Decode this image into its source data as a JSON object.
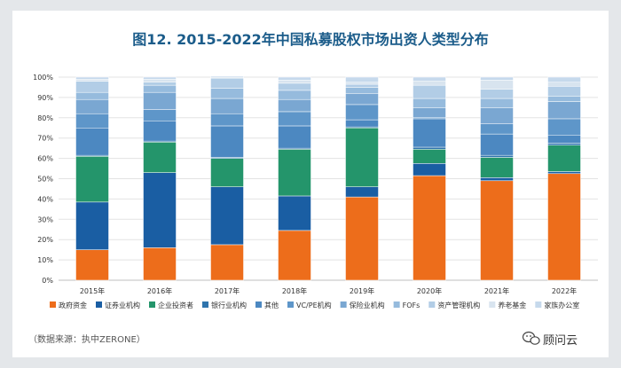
{
  "chart_data": {
    "type": "bar",
    "stacked": true,
    "title": "图12. 2015-2022年中国私募股权市场出资人类型分布",
    "categories": [
      "2015年",
      "2016年",
      "2017年",
      "2018年",
      "2019年",
      "2020年",
      "2021年",
      "2022年"
    ],
    "ylim": [
      0,
      100
    ],
    "yticks": [
      "0%",
      "10%",
      "20%",
      "30%",
      "40%",
      "50%",
      "60%",
      "70%",
      "80%",
      "90%",
      "100%"
    ],
    "grid": true,
    "legend_position": "bottom",
    "series": [
      {
        "name": "政府资金",
        "color": "#ed6d1b",
        "values": [
          15,
          16,
          17.5,
          24.5,
          41,
          51.5,
          49,
          52.5
        ]
      },
      {
        "name": "证券业机构",
        "color": "#1a5ea3",
        "values": [
          23.5,
          37,
          28.5,
          17,
          5,
          6,
          1.5,
          1
        ]
      },
      {
        "name": "企业投资者",
        "color": "#24956b",
        "values": [
          22.5,
          15,
          14,
          23,
          29,
          7,
          10,
          13
        ]
      },
      {
        "name": "银行业机构",
        "color": "#2f74ad",
        "values": [
          0.5,
          0.5,
          0.5,
          0.5,
          0.5,
          1,
          1,
          1
        ]
      },
      {
        "name": "其他",
        "color": "#4c88c1",
        "values": [
          13.5,
          10,
          15.5,
          11,
          3.5,
          14,
          10.5,
          4
        ]
      },
      {
        "name": "VC/PE机构",
        "color": "#5e96c9",
        "values": [
          7,
          5.5,
          6,
          7,
          7.5,
          0.5,
          5,
          8
        ]
      },
      {
        "name": "保险业机构",
        "color": "#7aa7d2",
        "values": [
          7,
          8.5,
          7.5,
          6,
          5.5,
          5,
          8,
          8.5
        ]
      },
      {
        "name": "FOFs",
        "color": "#96bbdd",
        "values": [
          3.5,
          3.5,
          5,
          4.5,
          3,
          4.5,
          4.5,
          2.5
        ]
      },
      {
        "name": "资产管理机构",
        "color": "#b2cde6",
        "values": [
          5.5,
          1.5,
          5,
          3.5,
          1.5,
          6.5,
          4.5,
          5
        ]
      },
      {
        "name": "养老基金",
        "color": "#d8e4ef",
        "values": [
          1,
          1.5,
          0.5,
          1.5,
          1,
          2,
          4.5,
          2
        ]
      },
      {
        "name": "家族办公室",
        "color": "#c6d9ec",
        "values": [
          1,
          1,
          0.5,
          1.5,
          2.5,
          2,
          1.5,
          2.5
        ]
      }
    ]
  },
  "source": "（数据来源：执中ZERONE）",
  "brand": "顾问云",
  "brand_icon": "wechat-icon"
}
